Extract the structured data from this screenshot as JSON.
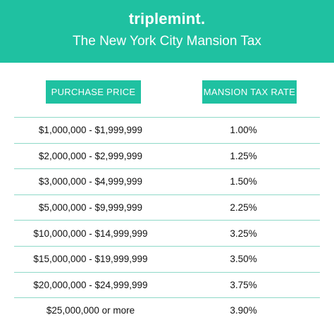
{
  "header": {
    "brand": "triplemint",
    "brand_dot": ".",
    "title": "The New York City Mansion Tax"
  },
  "columns": {
    "price": "PURCHASE PRICE",
    "rate": "MANSION TAX RATE"
  },
  "rows": [
    {
      "price": "$1,000,000 - $1,999,999",
      "rate": "1.00%"
    },
    {
      "price": "$2,000,000 - $2,999,999",
      "rate": "1.25%"
    },
    {
      "price": "$3,000,000 - $4,999,999",
      "rate": "1.50%"
    },
    {
      "price": "$5,000,000 - $9,999,999",
      "rate": "2.25%"
    },
    {
      "price": "$10,000,000 - $14,999,999",
      "rate": "3.25%"
    },
    {
      "price": "$15,000,000 - $19,999,999",
      "rate": "3.50%"
    },
    {
      "price": "$20,000,000 - $24,999,999",
      "rate": "3.75%"
    },
    {
      "price": "$25,000,000 or more",
      "rate": "3.90%"
    }
  ],
  "colors": {
    "accent": "#1fc1a1",
    "divider": "#8fd9c8"
  }
}
